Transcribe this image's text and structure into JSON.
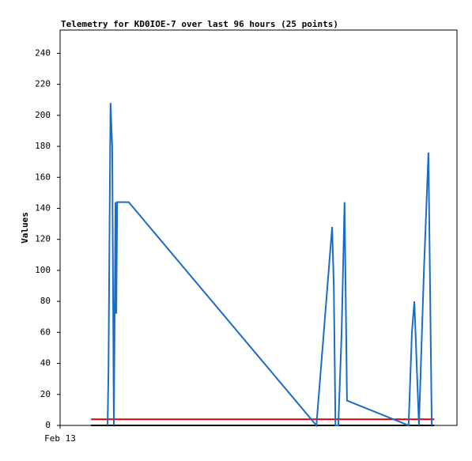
{
  "chart_data": {
    "type": "line",
    "title": "Telemetry for KD0IOE-7 over last 96 hours (25 points)",
    "y_label": "Values",
    "xlim": [
      0,
      96
    ],
    "xticks": [
      {
        "value": 0,
        "label": "Feb 13"
      }
    ],
    "ylim": [
      0,
      255
    ],
    "yticks": [
      0,
      20,
      40,
      60,
      80,
      100,
      120,
      140,
      160,
      180,
      200,
      220,
      240
    ],
    "series": [
      {
        "color": "#1a6cc4",
        "x": [
          11.5,
          11.7,
          11.9,
          12.2,
          12.6,
          13.0,
          13.4,
          13.6,
          13.8,
          16.6,
          62.0,
          65.8,
          66.2,
          66.6,
          67.3,
          68.1,
          68.8,
          69.4,
          84.3,
          85.1,
          85.7,
          86.8,
          88.0,
          89.1,
          89.9
        ],
        "values": [
          0,
          35,
          105,
          208,
          180,
          0,
          144,
          72,
          144,
          144,
          0,
          128,
          90,
          0,
          0,
          60,
          144,
          16,
          0,
          60,
          80,
          0,
          100,
          176,
          0
        ]
      },
      {
        "color": "#e00000",
        "x": [
          7.5,
          90.5
        ],
        "values": [
          4,
          4
        ]
      },
      {
        "color": "#000000",
        "x": [
          7.5,
          90.5
        ],
        "values": [
          0,
          0
        ]
      }
    ]
  }
}
